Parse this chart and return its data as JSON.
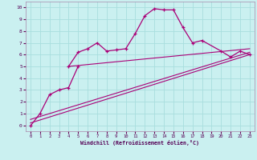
{
  "xlabel": "Windchill (Refroidissement éolien,°C)",
  "bg_color": "#caf0f0",
  "grid_color": "#a8dede",
  "line_color": "#aa0077",
  "x_hours": [
    0,
    1,
    2,
    3,
    4,
    5,
    6,
    7,
    8,
    9,
    10,
    11,
    12,
    13,
    14,
    15,
    16,
    17,
    18,
    19,
    20,
    21,
    22,
    23
  ],
  "series1": [
    null,
    null,
    null,
    null,
    5.0,
    6.2,
    6.5,
    7.0,
    6.3,
    6.4,
    6.5,
    7.8,
    9.3,
    9.9,
    9.8,
    9.8,
    8.3,
    7.0,
    7.2,
    null,
    6.3,
    5.8,
    6.3,
    6.0
  ],
  "series2": [
    -0.05,
    1.0,
    2.6,
    3.0,
    3.2,
    5.0,
    null,
    null,
    null,
    null,
    null,
    null,
    null,
    null,
    null,
    null,
    null,
    null,
    null,
    null,
    null,
    null,
    null,
    null
  ],
  "line1_x": [
    4,
    23
  ],
  "line1_y": [
    5.0,
    6.5
  ],
  "line2_x": [
    0,
    23
  ],
  "line2_y": [
    0.5,
    6.2
  ],
  "line3_x": [
    0,
    23
  ],
  "line3_y": [
    0.2,
    6.0
  ],
  "ylim": [
    -0.5,
    10.5
  ],
  "xlim": [
    -0.5,
    23.5
  ],
  "yticks": [
    0,
    1,
    2,
    3,
    4,
    5,
    6,
    7,
    8,
    9,
    10
  ],
  "xticks": [
    0,
    1,
    2,
    3,
    4,
    5,
    6,
    7,
    8,
    9,
    10,
    11,
    12,
    13,
    14,
    15,
    16,
    17,
    18,
    19,
    20,
    21,
    22,
    23
  ]
}
